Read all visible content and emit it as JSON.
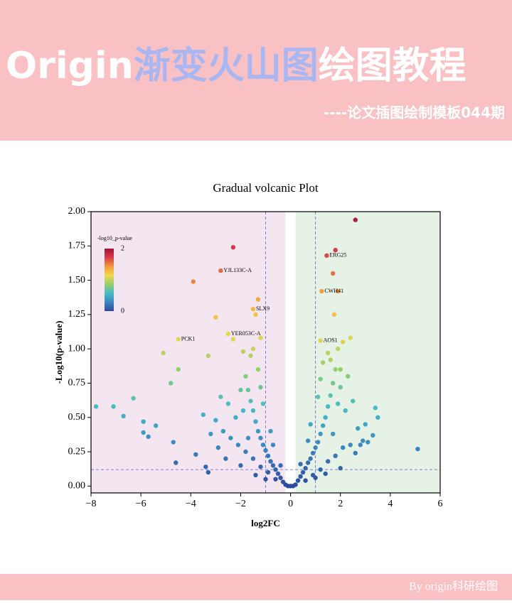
{
  "header": {
    "title": [
      {
        "text": "Origin",
        "color": "#ffffff"
      },
      {
        "text": "渐变火山图",
        "color": "#a8b6f2"
      },
      {
        "text": "绘图教程",
        "color": "#ffffff"
      }
    ],
    "subtitle": "----论文插图绘制模板044期"
  },
  "chart_data": {
    "type": "scatter",
    "title": "Gradual volcanic Plot",
    "x_label": "log2FC",
    "y_label": "-Log10(p-value)",
    "xlim": [
      -8,
      6
    ],
    "ylim": [
      -0.05,
      2.0
    ],
    "xticks": [
      {
        "value": -8,
        "label": "−8"
      },
      {
        "value": -6,
        "label": "−6"
      },
      {
        "value": -4,
        "label": "−4"
      },
      {
        "value": -2,
        "label": "−2"
      },
      0,
      2,
      4,
      6
    ],
    "yticks": [
      {
        "value": 0,
        "label": "0.00"
      },
      {
        "value": 0.25,
        "label": "0.25"
      },
      {
        "value": 0.5,
        "label": "0.50"
      },
      {
        "value": 0.75,
        "label": "0.75"
      },
      {
        "value": 1,
        "label": "1.00"
      },
      {
        "value": 1.25,
        "label": "1.25"
      },
      {
        "value": 1.5,
        "label": "1.50"
      },
      {
        "value": 1.75,
        "label": "1.75"
      },
      {
        "value": 2,
        "label": "2.00"
      }
    ],
    "vlines": [
      -1,
      1
    ],
    "hline": 0.12,
    "regions": [
      {
        "x": [
          -8,
          -0.2
        ],
        "color": "#f4e6f1"
      },
      {
        "x": [
          0.2,
          6
        ],
        "color": "#e6f2e6"
      }
    ],
    "colormap": [
      "#2d4a9e",
      "#3a86c0",
      "#45bcc6",
      "#95cf6c",
      "#f3d84a",
      "#f39a3c",
      "#dc3a48",
      "#a0143a"
    ],
    "colorbar": {
      "title": "-log10_p-value",
      "clim": [
        0,
        2
      ],
      "ticks": [
        0,
        2
      ]
    },
    "x": [
      2.6,
      -2.3,
      1.8,
      -3.9,
      1.7,
      1.9,
      1.75,
      -1.3,
      -3,
      -1.4,
      -2.3,
      -1.2,
      -5.1,
      -3.3,
      -1.9,
      -4.5,
      -4.8,
      -7.8,
      -7.1,
      -6.7,
      -6.3,
      -5.9,
      -5.4,
      -5.9,
      -5.7,
      -4.7,
      -4.6,
      -3.8,
      -3.4,
      -3.3,
      5.1,
      3.5,
      3.4,
      3.1,
      2.9,
      2.4,
      2.1,
      1.9,
      2.0,
      1.45,
      1.25,
      1.2,
      -1.5,
      -2.8,
      -2.5,
      -4.5,
      -0.2,
      0.2,
      -0.1,
      0.1,
      0,
      -0.3,
      0.3,
      -0.4,
      0.4,
      -0.5,
      0.5,
      -0.6,
      0.6,
      -0.7,
      0.7,
      -0.8,
      0.8,
      -0.9,
      0.9,
      -1.0,
      1.0,
      -1.1,
      1.1,
      -1.2,
      1.2,
      -1.3,
      1.3,
      -1.4,
      1.4,
      -1.5,
      1.5,
      -1.6,
      1.6,
      -1.7,
      1.7,
      -1.8,
      1.8,
      -0.6,
      0.6,
      -0.9,
      0.9,
      -1.2,
      1.2,
      -1.5,
      1.5,
      -1.8,
      1.8,
      -2.1,
      2.1,
      -2.4,
      2.4,
      -2.7,
      2.7,
      -3.0,
      3.0,
      -2.2,
      2.2,
      -2.5,
      2.5,
      -2.0,
      2.0,
      -1.3,
      1.3,
      -1.1,
      1.1,
      -0.8,
      0.8,
      -1.7,
      1.7,
      -2.6,
      2.6,
      -2.0,
      2.0,
      -1.0,
      1.0,
      -1.4,
      1.4,
      -2.9,
      2.8,
      -1.9,
      1.9,
      -1.6,
      1.6,
      -1.2,
      1.2,
      -0.7,
      0.7,
      -3.5,
      -3.2,
      3.3,
      -2.8,
      2.3,
      -1.5,
      1.5,
      -0.4,
      0.4
    ],
    "y": [
      1.94,
      1.74,
      1.72,
      1.49,
      1.55,
      1.42,
      1.25,
      1.36,
      1.23,
      1.25,
      1.07,
      1.08,
      0.97,
      0.95,
      0.98,
      0.85,
      0.75,
      0.58,
      0.58,
      0.51,
      0.64,
      0.47,
      0.44,
      0.39,
      0.36,
      0.32,
      0.17,
      0.23,
      0.14,
      0.1,
      0.27,
      0.5,
      0.57,
      0.32,
      0.33,
      1.08,
      1.05,
      1.0,
      0.85,
      1.68,
      1.42,
      1.06,
      1.29,
      1.57,
      1.11,
      1.07,
      0.01,
      0.01,
      0.0,
      0.0,
      0.0,
      0.03,
      0.04,
      0.06,
      0.07,
      0.09,
      0.1,
      0.12,
      0.13,
      0.15,
      0.17,
      0.18,
      0.2,
      0.22,
      0.24,
      0.26,
      0.28,
      0.3,
      0.32,
      0.35,
      0.38,
      0.4,
      0.44,
      0.47,
      0.5,
      0.55,
      0.58,
      0.62,
      0.66,
      0.7,
      0.75,
      0.8,
      0.85,
      0.05,
      0.04,
      0.1,
      0.08,
      0.14,
      0.12,
      0.2,
      0.18,
      0.25,
      0.22,
      0.3,
      0.28,
      0.35,
      0.3,
      0.4,
      0.42,
      0.48,
      0.45,
      0.5,
      0.55,
      0.6,
      0.62,
      0.7,
      0.72,
      0.85,
      0.9,
      0.6,
      0.65,
      0.4,
      0.45,
      0.35,
      0.38,
      0.2,
      0.24,
      0.15,
      0.13,
      0.05,
      0.06,
      0.08,
      0.09,
      0.28,
      0.3,
      0.55,
      0.6,
      0.95,
      0.92,
      0.72,
      0.78,
      0.3,
      0.33,
      0.52,
      0.38,
      0.37,
      0.65,
      0.8,
      1.0,
      0.97,
      0.15,
      0.16
    ],
    "annotations": [
      {
        "text": "ERG25",
        "x": 1.45,
        "y": 1.68
      },
      {
        "text": "CWH41",
        "x": 1.25,
        "y": 1.42
      },
      {
        "text": "AOS1",
        "x": 1.2,
        "y": 1.06
      },
      {
        "text": "SLX9",
        "x": -1.5,
        "y": 1.29
      },
      {
        "text": "YJL133C-A",
        "x": -2.8,
        "y": 1.57
      },
      {
        "text": "YER053C-A",
        "x": -2.5,
        "y": 1.11
      },
      {
        "text": "PCK1",
        "x": -4.5,
        "y": 1.07
      }
    ]
  },
  "footer": "By origin科研绘图"
}
